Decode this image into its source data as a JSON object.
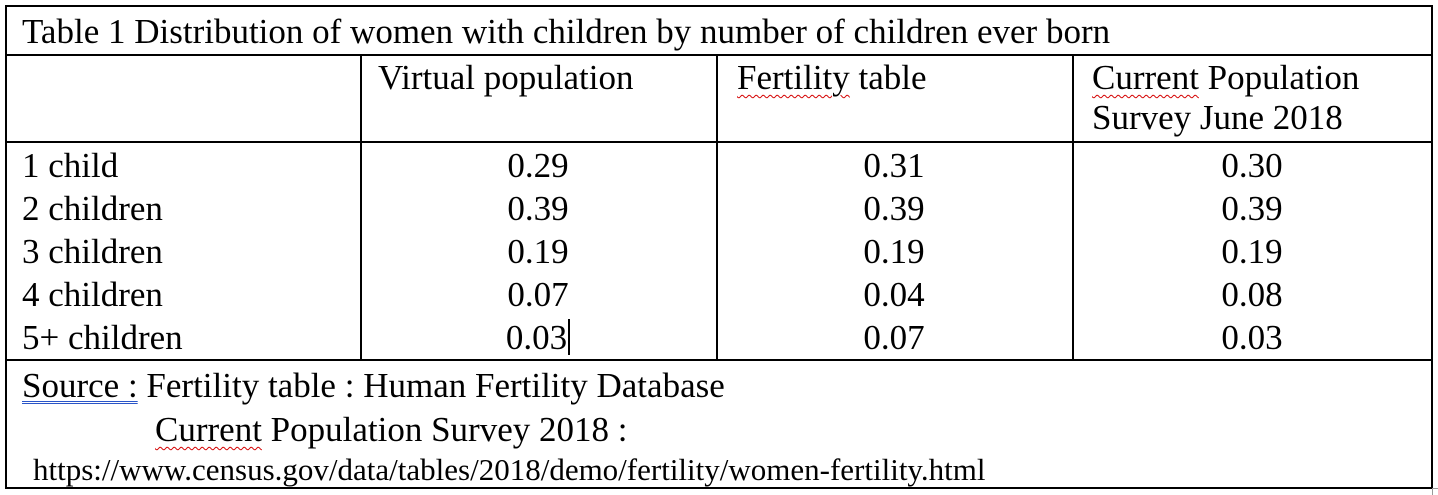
{
  "table": {
    "caption": "Table 1 Distribution of women with children by number of children ever born",
    "columns": [
      "",
      "Virtual population",
      "Fertility table",
      [
        "Current Population",
        "Survey June 2018"
      ]
    ],
    "rows": [
      {
        "label": "1 child",
        "values": [
          "0.29",
          "0.31",
          "0.30"
        ]
      },
      {
        "label": "2 children",
        "values": [
          "0.39",
          "0.39",
          "0.39"
        ]
      },
      {
        "label": "3 children",
        "values": [
          "0.19",
          "0.19",
          "0.19"
        ]
      },
      {
        "label": "4 children",
        "values": [
          "0.07",
          "0.04",
          "0.08"
        ]
      },
      {
        "label": "5+ children",
        "values": [
          "0.03",
          "0.07",
          "0.03"
        ]
      }
    ],
    "source": {
      "label": "Source :",
      "line1": "Fertility table : Human Fertility Database",
      "line2_word": "Current",
      "line2_rest": " Population Survey 2018 :",
      "url": "https://www.census.gov/data/tables/2018/demo/fertility/women-fertility.html"
    }
  },
  "chart_data": {
    "type": "table",
    "title": "Table 1 Distribution of women with children by number of children ever born",
    "categories": [
      "1 child",
      "2 children",
      "3 children",
      "4 children",
      "5+ children"
    ],
    "series": [
      {
        "name": "Virtual population",
        "values": [
          0.29,
          0.39,
          0.19,
          0.07,
          0.03
        ]
      },
      {
        "name": "Fertility table",
        "values": [
          0.31,
          0.39,
          0.19,
          0.04,
          0.07
        ]
      },
      {
        "name": "Current Population Survey June 2018",
        "values": [
          0.3,
          0.39,
          0.19,
          0.08,
          0.03
        ]
      }
    ]
  }
}
